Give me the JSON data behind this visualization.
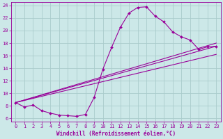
{
  "xlabel": "Windchill (Refroidissement éolien,°C)",
  "background_color": "#cce8e8",
  "grid_color": "#aacccc",
  "line_color": "#990099",
  "xlim": [
    -0.5,
    23.5
  ],
  "ylim": [
    5.5,
    24.5
  ],
  "yticks": [
    6,
    8,
    10,
    12,
    14,
    16,
    18,
    20,
    22,
    24
  ],
  "xticks": [
    0,
    1,
    2,
    3,
    4,
    5,
    6,
    7,
    8,
    9,
    10,
    11,
    12,
    13,
    14,
    15,
    16,
    17,
    18,
    19,
    20,
    21,
    22,
    23
  ],
  "curve_main_x": [
    0,
    1,
    2,
    3,
    4,
    5,
    6,
    7,
    8,
    9,
    10,
    11,
    12,
    13,
    14,
    15,
    16,
    17,
    18,
    19,
    20,
    21,
    22,
    23
  ],
  "curve_main_y": [
    8.5,
    7.8,
    8.1,
    7.2,
    6.8,
    6.5,
    6.4,
    6.3,
    6.6,
    9.3,
    13.8,
    17.3,
    20.5,
    22.8,
    23.7,
    23.8,
    22.3,
    21.4,
    19.8,
    19.0,
    18.5,
    17.0,
    17.4,
    17.5
  ],
  "line1_x": [
    0,
    23
  ],
  "line1_y": [
    8.5,
    17.5
  ],
  "line2_x": [
    0,
    23
  ],
  "line2_y": [
    8.5,
    18.0
  ],
  "line3_x": [
    0,
    23
  ],
  "line3_y": [
    8.5,
    16.2
  ],
  "marker_style": "D",
  "marker_size": 2.0,
  "linewidth": 0.8,
  "tick_fontsize": 5.0,
  "xlabel_fontsize": 5.5
}
